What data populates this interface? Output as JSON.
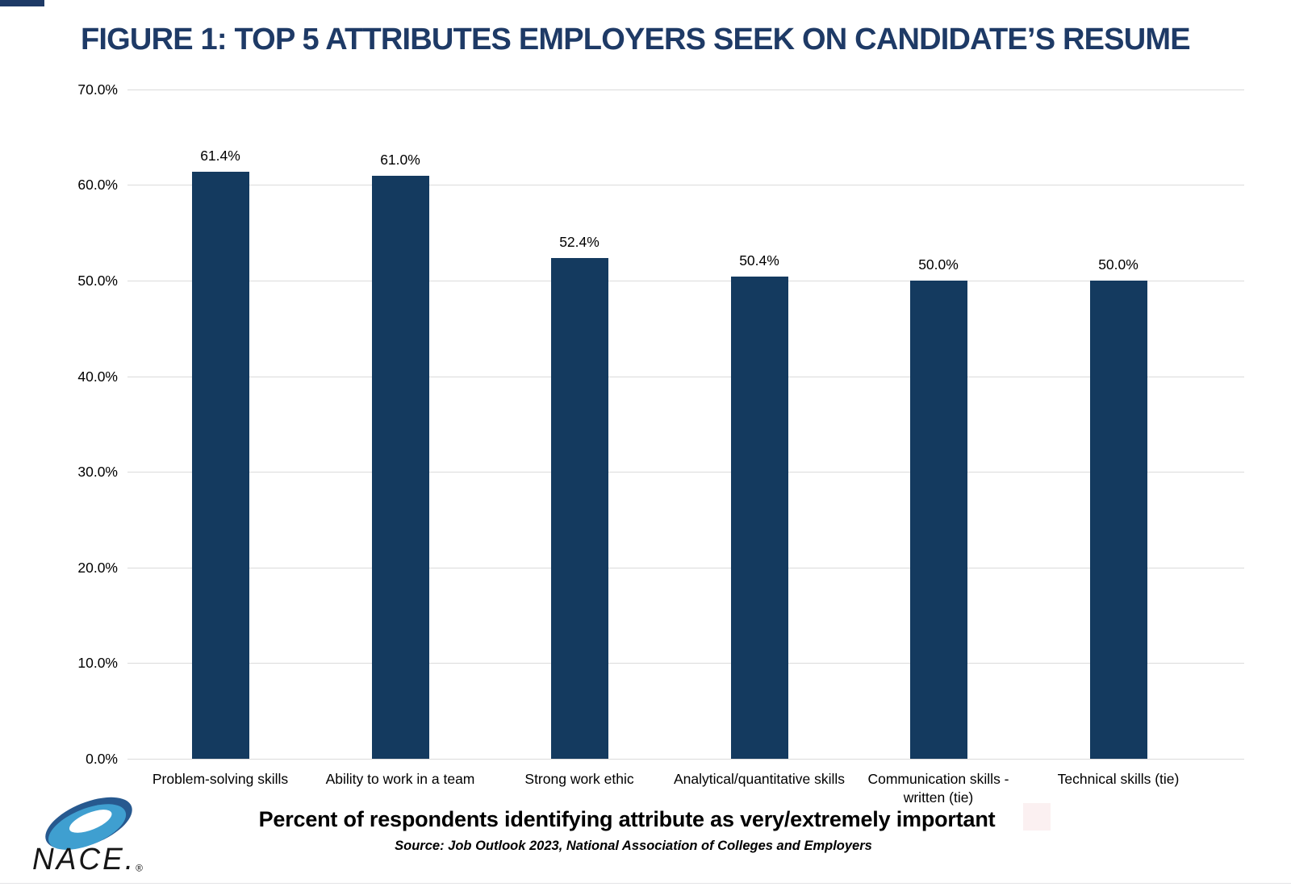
{
  "chart_data": {
    "type": "bar",
    "title": "FIGURE 1: TOP 5 ATTRIBUTES EMPLOYERS SEEK ON CANDIDATE’S RESUME",
    "categories": [
      "Problem-solving skills",
      "Ability to work in a team",
      "Strong work ethic",
      "Analytical/quantitative skills",
      "Communication skills -\nwritten (tie)",
      "Technical skills (tie)"
    ],
    "values": [
      61.4,
      61.0,
      52.4,
      50.4,
      50.0,
      50.0
    ],
    "value_labels": [
      "61.4%",
      "61.0%",
      "52.4%",
      "50.4%",
      "50.0%",
      "50.0%"
    ],
    "xlabel": "Percent of respondents identifying attribute as very/extremely important",
    "ylabel": "",
    "ylim": [
      0,
      70
    ],
    "ytick_labels": [
      "70.0%",
      "60.0%",
      "50.0%",
      "40.0%",
      "30.0%",
      "20.0%",
      "10.0%",
      "0.0%"
    ],
    "grid": true,
    "legend": "none",
    "bar_color": "#143A5F"
  },
  "footer": {
    "caption": "Percent of respondents identifying attribute as very/extremely important",
    "source": "Source: Job Outlook 2023, National Association of Colleges and Employers"
  },
  "logo": {
    "name": "NACE",
    "suffix": ".",
    "registered": "®"
  },
  "colors": {
    "title_navy": "#1E3A66",
    "bar_navy": "#143A5F",
    "gridline_gray": "#DBDBDB",
    "logo_dark_blue": "#27598F",
    "logo_light_blue": "#3F9FD0"
  }
}
